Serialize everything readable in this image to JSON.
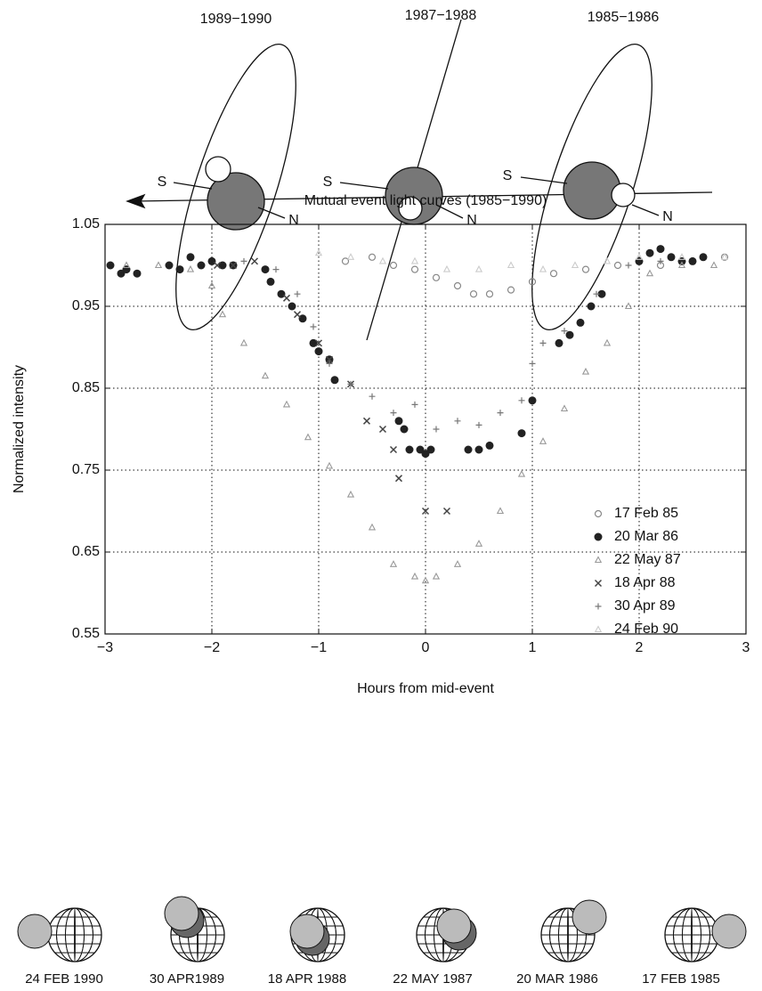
{
  "chart_data": {
    "type": "scatter",
    "title": "Mutual event light curves (1985−1990)",
    "x_label": "Hours from mid-event",
    "y_label": "Normalized intensity",
    "xlim": [
      -3,
      3
    ],
    "ylim": [
      0.55,
      1.05
    ],
    "xticks": [
      {
        "value": -3,
        "label": "−3"
      },
      {
        "value": -2,
        "label": "−2"
      },
      {
        "value": -1,
        "label": "−1"
      },
      0,
      1,
      2,
      3
    ],
    "yticks": [
      0.55,
      0.65,
      0.75,
      0.85,
      0.95,
      1.05
    ],
    "grid": true,
    "legend": "lower right",
    "series": [
      {
        "name": "17 Feb 85",
        "color": "#888888",
        "marker": "circle-open",
        "x": [
          -0.75,
          -0.5,
          -0.3,
          -0.1,
          0.1,
          0.3,
          0.45,
          0.6,
          0.8,
          1.0,
          1.2,
          1.5,
          1.8,
          2.2,
          2.5,
          2.8
        ],
        "values": [
          1.005,
          1.01,
          1.0,
          0.995,
          0.985,
          0.975,
          0.965,
          0.965,
          0.97,
          0.98,
          0.99,
          0.995,
          1.0,
          1.0,
          1.005,
          1.01
        ]
      },
      {
        "name": "20 Mar 86",
        "color": "#222222",
        "marker": "circle",
        "x": [
          -2.95,
          -2.85,
          -2.8,
          -2.7,
          -2.4,
          -2.3,
          -2.2,
          -2.1,
          -2.0,
          -1.9,
          -1.8,
          -1.5,
          -1.45,
          -1.35,
          -1.25,
          -1.15,
          -1.05,
          -1.0,
          -0.9,
          -0.85,
          -0.25,
          -0.2,
          -0.15,
          -0.05,
          0.0,
          0.05,
          0.4,
          0.5,
          0.6,
          0.9,
          1.0,
          1.25,
          1.35,
          1.45,
          1.55,
          1.65,
          2.0,
          2.1,
          2.2,
          2.3,
          2.4,
          2.5,
          2.6
        ],
        "values": [
          1.0,
          0.99,
          0.995,
          0.99,
          1.0,
          0.995,
          1.01,
          1.0,
          1.005,
          1.0,
          1.0,
          0.995,
          0.98,
          0.965,
          0.95,
          0.935,
          0.905,
          0.895,
          0.885,
          0.86,
          0.81,
          0.8,
          0.775,
          0.775,
          0.77,
          0.775,
          0.775,
          0.775,
          0.78,
          0.795,
          0.835,
          0.905,
          0.915,
          0.93,
          0.95,
          0.965,
          1.005,
          1.015,
          1.02,
          1.01,
          1.005,
          1.005,
          1.01
        ]
      },
      {
        "name": "22 May 87",
        "color": "#999999",
        "marker": "triangle",
        "x": [
          -2.8,
          -2.5,
          -2.2,
          -2.0,
          -1.9,
          -1.7,
          -1.5,
          -1.3,
          -1.1,
          -0.9,
          -0.7,
          -0.5,
          -0.3,
          -0.1,
          0.0,
          0.1,
          0.3,
          0.5,
          0.7,
          0.9,
          1.1,
          1.3,
          1.5,
          1.7,
          1.9,
          2.1,
          2.4,
          2.7
        ],
        "values": [
          1.0,
          1.0,
          0.995,
          0.975,
          0.94,
          0.905,
          0.865,
          0.83,
          0.79,
          0.755,
          0.72,
          0.68,
          0.635,
          0.62,
          0.615,
          0.62,
          0.635,
          0.66,
          0.7,
          0.745,
          0.785,
          0.825,
          0.87,
          0.905,
          0.95,
          0.99,
          1.0,
          1.0
        ]
      },
      {
        "name": "18 Apr 88",
        "color": "#444444",
        "marker": "x",
        "x": [
          -1.95,
          -1.8,
          -1.6,
          -1.3,
          -1.2,
          -1.0,
          -0.9,
          -0.7,
          -0.55,
          -0.4,
          -0.3,
          -0.25,
          0.0,
          0.2
        ],
        "values": [
          1.0,
          1.0,
          1.005,
          0.96,
          0.94,
          0.905,
          0.885,
          0.855,
          0.81,
          0.8,
          0.775,
          0.74,
          0.7,
          0.7
        ]
      },
      {
        "name": "30 Apr 89",
        "color": "#777777",
        "marker": "plus",
        "x": [
          -1.7,
          -1.4,
          -1.2,
          -1.05,
          -0.9,
          -0.7,
          -0.5,
          -0.3,
          -0.1,
          0.1,
          0.3,
          0.5,
          0.7,
          0.9,
          1.0,
          1.1,
          1.3,
          1.6,
          1.9,
          2.2
        ],
        "values": [
          1.005,
          0.995,
          0.965,
          0.925,
          0.88,
          0.855,
          0.84,
          0.82,
          0.83,
          0.8,
          0.81,
          0.805,
          0.82,
          0.835,
          0.88,
          0.905,
          0.92,
          0.965,
          1.0,
          1.005
        ]
      },
      {
        "name": "24 Feb 90",
        "color": "#cccccc",
        "marker": "triangle",
        "x": [
          -1.0,
          -0.7,
          -0.4,
          -0.1,
          0.2,
          0.5,
          0.8,
          1.1,
          1.4,
          1.7,
          2.0,
          2.4,
          2.8
        ],
        "values": [
          1.015,
          1.01,
          1.005,
          1.005,
          0.995,
          0.995,
          1.0,
          0.995,
          1.0,
          1.005,
          1.01,
          1.01,
          1.01
        ]
      }
    ]
  },
  "diagram": {
    "orbits": [
      {
        "label": "1989−1990",
        "south": "S",
        "north": "N"
      },
      {
        "label": "1987−1988",
        "south": "S",
        "north": "N"
      },
      {
        "label": "1985−1986",
        "south": "S",
        "north": "N"
      }
    ],
    "events": [
      "24 FEB 1990",
      "30 APR1989",
      "18 APR 1988",
      "22 MAY 1987",
      "20 MAR 1986",
      "17 FEB 1985"
    ]
  }
}
